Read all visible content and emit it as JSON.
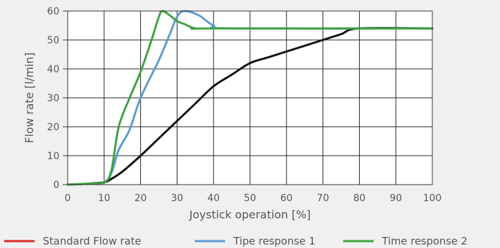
{
  "chart_data": {
    "type": "line",
    "title": "",
    "xlabel": "Joystick operation [%]",
    "ylabel": "Flow rate [l/min]",
    "xlim": [
      0,
      100
    ],
    "ylim": [
      0,
      60
    ],
    "x_ticks": [
      0,
      10,
      20,
      30,
      40,
      50,
      60,
      70,
      80,
      90,
      100
    ],
    "y_ticks": [
      0,
      10,
      20,
      30,
      40,
      50,
      60
    ],
    "grid": true,
    "legend_position": "bottom",
    "series": [
      {
        "name": "Standard Flow rate",
        "legend_color": "#d62728",
        "color": "#111111",
        "points": [
          [
            0,
            0
          ],
          [
            5,
            0.3
          ],
          [
            10,
            0.8
          ],
          [
            12,
            2
          ],
          [
            15,
            4.5
          ],
          [
            20,
            10
          ],
          [
            25,
            16
          ],
          [
            30,
            22
          ],
          [
            35,
            28
          ],
          [
            40,
            34
          ],
          [
            45,
            38
          ],
          [
            50,
            42
          ],
          [
            55,
            44
          ],
          [
            60,
            46
          ],
          [
            65,
            48
          ],
          [
            70,
            50
          ],
          [
            75,
            52
          ],
          [
            80,
            54
          ],
          [
            100,
            54
          ]
        ]
      },
      {
        "name": "Tipe response 1",
        "legend_color": "#5b9bd5",
        "color": "#5b9bd5",
        "points": [
          [
            0,
            0
          ],
          [
            5,
            0.3
          ],
          [
            10,
            0.8
          ],
          [
            12,
            4
          ],
          [
            14,
            12
          ],
          [
            17,
            19
          ],
          [
            20,
            30
          ],
          [
            25,
            43
          ],
          [
            28,
            52
          ],
          [
            30,
            58
          ],
          [
            32,
            60
          ],
          [
            36,
            58.5
          ],
          [
            40,
            55
          ],
          [
            45,
            54
          ],
          [
            100,
            54
          ]
        ]
      },
      {
        "name": "Time response 2",
        "legend_color": "#3ca33c",
        "color": "#3ca33c",
        "points": [
          [
            0,
            0
          ],
          [
            5,
            0.3
          ],
          [
            10,
            0.8
          ],
          [
            12,
            5
          ],
          [
            14,
            20
          ],
          [
            17,
            30
          ],
          [
            20,
            39
          ],
          [
            23,
            50
          ],
          [
            25,
            58
          ],
          [
            26,
            60
          ],
          [
            28,
            58.5
          ],
          [
            30,
            56.5
          ],
          [
            32,
            55.5
          ],
          [
            35,
            54
          ],
          [
            40,
            54
          ],
          [
            100,
            54
          ]
        ]
      }
    ]
  }
}
